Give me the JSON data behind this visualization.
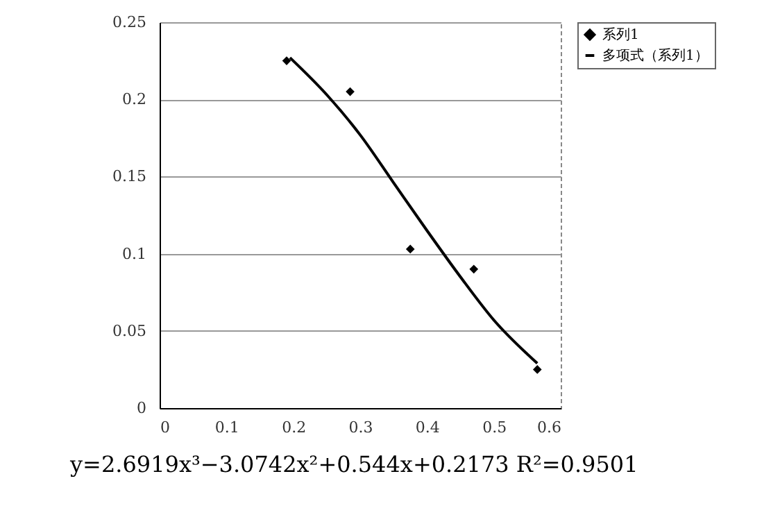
{
  "chart_data": {
    "type": "scatter",
    "xlim": [
      0,
      0.6
    ],
    "xticks": [
      0,
      0.1,
      0.2,
      0.3,
      0.4,
      0.5,
      0.6
    ],
    "ylim": [
      0,
      0.25
    ],
    "yticks": [
      0,
      0.05,
      0.1,
      0.15,
      0.2,
      0.25
    ],
    "grid": "y",
    "legend": "right",
    "annotations": [
      "y=2.6919x³−3.0742x²+0.544x+0.2173 R²=0.9501"
    ],
    "series": [
      {
        "name": "系列1",
        "marker": "diamond",
        "color": "#000000",
        "x": [
          0.19,
          0.285,
          0.375,
          0.47,
          0.565
        ],
        "values": [
          0.225,
          0.205,
          0.103,
          0.09,
          0.025
        ]
      },
      {
        "name": "多项式（系列1）",
        "type": "line",
        "color": "#000000",
        "x": [
          0.195,
          0.25,
          0.3,
          0.35,
          0.4,
          0.45,
          0.5,
          0.565
        ],
        "values": [
          0.227,
          0.203,
          0.177,
          0.146,
          0.115,
          0.085,
          0.057,
          0.029
        ]
      }
    ]
  }
}
